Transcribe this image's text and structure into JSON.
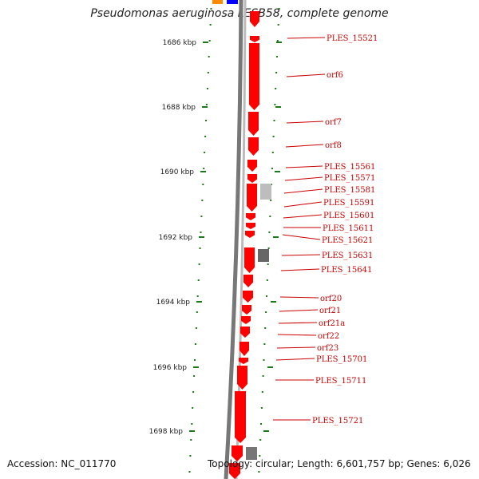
{
  "title": "Pseudomonas aeruginosa LESB58, complete genome",
  "footer": {
    "accession": "Accession: NC_011770",
    "topology": "Topology: circular; Length: 6,601,757 bp; Genes: 6,026"
  },
  "colors": {
    "gene": "#ff0000",
    "other_feature": "#808080",
    "tick": "#1a7a1a",
    "label": "#cc0000",
    "top_orange": "#ff8c00",
    "top_blue": "#0000ff"
  },
  "axis_ticks": [
    "1686 kbp",
    "1688 kbp",
    "1690 kbp",
    "1692 kbp",
    "1694 kbp",
    "1696 kbp",
    "1698 kbp"
  ],
  "gene_labels": [
    "PLES_15521",
    "orf6",
    "orf7",
    "orf8",
    "PLES_15561",
    "PLES_15571",
    "PLES_15581",
    "PLES_15591",
    "PLES_15601",
    "PLES_15611",
    "PLES_15621",
    "PLES_15631",
    "PLES_15641",
    "orf20",
    "orf21",
    "orf21a",
    "orf22",
    "orf23",
    "PLES_15701",
    "PLES_15711",
    "PLES_15721"
  ]
}
